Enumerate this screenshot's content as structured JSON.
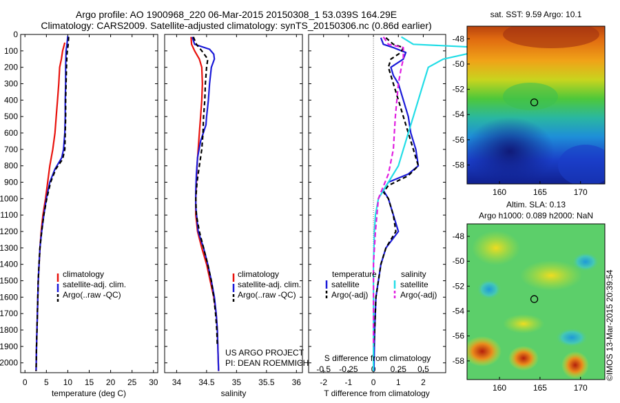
{
  "header": {
    "title_line1": "Argo profile: AO 1900968_220 06-Mar-2015 20150308_1 53.039S 164.29E",
    "title_line2": "Climatology: CARS2009. Satellite-adjusted climatology: synTS_20150306.nc (0.86d earlier)"
  },
  "colors": {
    "climatology": "#e8110c",
    "satellite": "#1a1ad8",
    "argo": "#000000",
    "satellite_salinity": "#22dde6",
    "argo_adj_salinity": "#e01ee0"
  },
  "credits": {
    "line1": "US ARGO PROJECT",
    "line2": "PI: DEAN ROEMMICH",
    "timestamp": "©IMOS 13-Mar-2015 20:39:54"
  },
  "maps": {
    "sst": {
      "title": "sat. SST: 9.59 Argo: 10.1"
    },
    "sla": {
      "title_line1": "Altim. SLA: 0.13",
      "title_line2": "Argo h1000: 0.089 h2000: NaN"
    }
  },
  "chart_data": [
    {
      "type": "line",
      "name": "temperature_panel",
      "xlabel": "temperature (deg C)",
      "ylabel": "",
      "xlim": [
        -1,
        31
      ],
      "ylim": [
        2060,
        0
      ],
      "xticks": [
        0,
        5,
        10,
        15,
        20,
        25,
        30
      ],
      "yticks": [
        0,
        100,
        200,
        300,
        400,
        500,
        600,
        700,
        800,
        900,
        1000,
        1100,
        1200,
        1300,
        1400,
        1500,
        1600,
        1700,
        1800,
        1900,
        2000
      ],
      "legend": [
        "climatology",
        "satellite-adj. clim.",
        "Argo(..raw -QC)"
      ],
      "legend_loc": "lower-center",
      "series": [
        {
          "name": "climatology",
          "color": "climatology",
          "dash": "",
          "points": [
            [
              9.3,
              50
            ],
            [
              8.8,
              100
            ],
            [
              8.5,
              150
            ],
            [
              8.1,
              200
            ],
            [
              7.9,
              300
            ],
            [
              7.6,
              400
            ],
            [
              7.3,
              500
            ],
            [
              7.0,
              600
            ],
            [
              6.5,
              700
            ],
            [
              5.8,
              800
            ],
            [
              5.3,
              900
            ],
            [
              4.8,
              1000
            ],
            [
              4.2,
              1100
            ],
            [
              3.8,
              1200
            ],
            [
              3.5,
              1300
            ],
            [
              3.3,
              1400
            ],
            [
              3.1,
              1500
            ],
            [
              2.9,
              1700
            ],
            [
              2.7,
              1900
            ],
            [
              2.6,
              2050
            ]
          ]
        },
        {
          "name": "satellite-adj. clim.",
          "color": "satellite",
          "dash": "",
          "points": [
            [
              10.0,
              10
            ],
            [
              9.8,
              60
            ],
            [
              9.6,
              100
            ],
            [
              9.5,
              200
            ],
            [
              9.5,
              300
            ],
            [
              9.4,
              400
            ],
            [
              9.4,
              500
            ],
            [
              9.3,
              600
            ],
            [
              9.0,
              700
            ],
            [
              8.6,
              750
            ],
            [
              7.0,
              820
            ],
            [
              5.8,
              900
            ],
            [
              5.0,
              1000
            ],
            [
              4.4,
              1100
            ],
            [
              3.9,
              1200
            ],
            [
              3.5,
              1300
            ],
            [
              3.3,
              1400
            ],
            [
              3.1,
              1500
            ],
            [
              2.9,
              1700
            ],
            [
              2.7,
              1900
            ],
            [
              2.6,
              2050
            ]
          ]
        },
        {
          "name": "Argo(..raw -QC)",
          "color": "argo",
          "dash": "6,4",
          "points": [
            [
              10.2,
              15
            ],
            [
              10.1,
              60
            ],
            [
              9.8,
              120
            ],
            [
              9.7,
              200
            ],
            [
              9.6,
              300
            ],
            [
              9.5,
              400
            ],
            [
              9.5,
              500
            ],
            [
              9.4,
              600
            ],
            [
              9.3,
              700
            ],
            [
              8.8,
              760
            ],
            [
              7.2,
              820
            ],
            [
              6.0,
              900
            ],
            [
              5.1,
              1000
            ],
            [
              4.4,
              1100
            ],
            [
              3.9,
              1200
            ],
            [
              3.5,
              1300
            ],
            [
              3.3,
              1400
            ],
            [
              3.1,
              1500
            ],
            [
              2.9,
              1700
            ],
            [
              2.7,
              1900
            ],
            [
              2.6,
              2050
            ]
          ]
        }
      ]
    },
    {
      "type": "line",
      "name": "salinity_panel",
      "xlabel": "salinity",
      "ylabel": "",
      "xlim": [
        33.8,
        36.1
      ],
      "ylim": [
        2060,
        0
      ],
      "xticks": [
        34,
        34.5,
        35,
        35.5,
        36
      ],
      "xticklabels": [
        "34",
        "34.5",
        "35",
        "35.5",
        "36"
      ],
      "legend": [
        "climatology",
        "satellite-adj. clim.",
        "Argo(..raw -QC)"
      ],
      "legend_loc": "lower-right",
      "series": [
        {
          "name": "climatology",
          "color": "climatology",
          "dash": "",
          "points": [
            [
              34.24,
              15
            ],
            [
              34.25,
              60
            ],
            [
              34.3,
              100
            ],
            [
              34.38,
              150
            ],
            [
              34.42,
              200
            ],
            [
              34.43,
              300
            ],
            [
              34.42,
              400
            ],
            [
              34.4,
              500
            ],
            [
              34.38,
              600
            ],
            [
              34.36,
              700
            ],
            [
              34.34,
              800
            ],
            [
              34.33,
              900
            ],
            [
              34.32,
              1000
            ],
            [
              34.32,
              1100
            ],
            [
              34.35,
              1200
            ],
            [
              34.42,
              1300
            ],
            [
              34.5,
              1400
            ],
            [
              34.56,
              1500
            ],
            [
              34.62,
              1600
            ],
            [
              34.66,
              1700
            ],
            [
              34.68,
              1800
            ],
            [
              34.7,
              2050
            ]
          ]
        },
        {
          "name": "satellite-adj. clim.",
          "color": "satellite",
          "dash": "",
          "points": [
            [
              34.26,
              15
            ],
            [
              34.3,
              60
            ],
            [
              34.55,
              90
            ],
            [
              34.62,
              120
            ],
            [
              34.63,
              150
            ],
            [
              34.58,
              200
            ],
            [
              34.55,
              300
            ],
            [
              34.53,
              400
            ],
            [
              34.5,
              500
            ],
            [
              34.49,
              550
            ],
            [
              34.4,
              650
            ],
            [
              34.35,
              750
            ],
            [
              34.33,
              850
            ],
            [
              34.32,
              950
            ],
            [
              34.32,
              1050
            ],
            [
              34.36,
              1200
            ],
            [
              34.45,
              1300
            ],
            [
              34.52,
              1400
            ],
            [
              34.58,
              1500
            ],
            [
              34.63,
              1600
            ],
            [
              34.66,
              1700
            ],
            [
              34.68,
              1800
            ],
            [
              34.7,
              2050
            ]
          ]
        },
        {
          "name": "Argo(..raw -QC)",
          "color": "argo",
          "dash": "6,4",
          "points": [
            [
              34.28,
              15
            ],
            [
              34.33,
              60
            ],
            [
              34.42,
              100
            ],
            [
              34.52,
              150
            ],
            [
              34.5,
              200
            ],
            [
              34.48,
              300
            ],
            [
              34.47,
              400
            ],
            [
              34.45,
              500
            ],
            [
              34.44,
              600
            ],
            [
              34.42,
              700
            ],
            [
              34.38,
              800
            ],
            [
              34.34,
              900
            ],
            [
              34.32,
              1000
            ],
            [
              34.33,
              1100
            ],
            [
              34.38,
              1200
            ],
            [
              34.45,
              1300
            ],
            [
              34.52,
              1400
            ],
            [
              34.58,
              1500
            ],
            [
              34.62,
              1600
            ],
            [
              34.65,
              1700
            ],
            [
              34.67,
              1800
            ],
            [
              34.68,
              1900
            ]
          ]
        }
      ]
    },
    {
      "type": "line",
      "name": "difference_panel",
      "xlabel": "T difference from climatology",
      "xlabel_top": "S difference from climatology",
      "ylabel": "",
      "xlim": [
        -2.6,
        2.9
      ],
      "ylim": [
        2060,
        0
      ],
      "xticks": [
        -2,
        -1,
        0,
        1,
        2
      ],
      "xticklabels": [
        "-2",
        "-1",
        "0",
        "1",
        "2"
      ],
      "s_ticks": [
        -0.5,
        -0.25,
        0,
        0.25,
        0.5
      ],
      "s_ticklabels": [
        "-0.5",
        "-0.25",
        "0",
        "0.25",
        "0.5"
      ],
      "s_scale": 4,
      "legend_groups": [
        {
          "title": "temperature",
          "items": [
            "satellite",
            "Argo(-adj)"
          ]
        },
        {
          "title": "salinity",
          "items": [
            "satellite",
            "Argo(-adj)"
          ]
        }
      ],
      "series": [
        {
          "name": "temperature satellite",
          "color": "satellite",
          "dash": "",
          "points": [
            [
              0.3,
              20
            ],
            [
              0.4,
              60
            ],
            [
              0.8,
              80
            ],
            [
              1.3,
              110
            ],
            [
              1.2,
              150
            ],
            [
              0.9,
              180
            ],
            [
              0.7,
              200
            ],
            [
              0.8,
              250
            ],
            [
              1.0,
              300
            ],
            [
              1.2,
              400
            ],
            [
              1.4,
              500
            ],
            [
              1.5,
              600
            ],
            [
              1.7,
              700
            ],
            [
              1.8,
              800
            ],
            [
              1.4,
              850
            ],
            [
              0.6,
              900
            ],
            [
              0.4,
              950
            ],
            [
              0.6,
              1000
            ],
            [
              0.8,
              1100
            ],
            [
              1.0,
              1200
            ],
            [
              0.5,
              1300
            ],
            [
              0.3,
              1400
            ],
            [
              0.2,
              1500
            ],
            [
              0.1,
              1600
            ],
            [
              0.05,
              1800
            ],
            [
              0.02,
              2050
            ]
          ]
        },
        {
          "name": "temperature Argo(-adj)",
          "color": "argo",
          "dash": "6,4",
          "points": [
            [
              0.5,
              20
            ],
            [
              0.8,
              60
            ],
            [
              1.2,
              80
            ],
            [
              1.1,
              110
            ],
            [
              0.7,
              150
            ],
            [
              0.6,
              200
            ],
            [
              0.8,
              300
            ],
            [
              1.0,
              400
            ],
            [
              1.2,
              500
            ],
            [
              1.4,
              600
            ],
            [
              1.6,
              700
            ],
            [
              1.8,
              800
            ],
            [
              1.4,
              860
            ],
            [
              0.6,
              920
            ],
            [
              0.4,
              960
            ],
            [
              0.6,
              1000
            ],
            [
              0.8,
              1100
            ],
            [
              0.9,
              1200
            ],
            [
              0.5,
              1300
            ],
            [
              0.3,
              1400
            ],
            [
              0.2,
              1500
            ],
            [
              0.1,
              1600
            ],
            [
              0.05,
              1800
            ],
            [
              0.02,
              1900
            ]
          ]
        },
        {
          "name": "salinity satellite",
          "color": "satellite_salinity",
          "dash": "",
          "points": [
            [
              0.28,
              15
            ],
            [
              0.4,
              60
            ],
            [
              1.1,
              80
            ],
            [
              1.0,
              110
            ],
            [
              0.7,
              150
            ],
            [
              0.55,
              200
            ],
            [
              0.5,
              300
            ],
            [
              0.45,
              400
            ],
            [
              0.4,
              500
            ],
            [
              0.35,
              600
            ],
            [
              0.3,
              700
            ],
            [
              0.25,
              800
            ],
            [
              0.15,
              900
            ],
            [
              0.05,
              1000
            ],
            [
              0.02,
              1100
            ],
            [
              0.01,
              1200
            ],
            [
              0.0,
              1400
            ],
            [
              0.0,
              2050
            ]
          ]
        },
        {
          "name": "salinity Argo(-adj)",
          "color": "argo_adj_salinity",
          "dash": "7,4",
          "points": [
            [
              0.1,
              15
            ],
            [
              0.15,
              60
            ],
            [
              0.3,
              80
            ],
            [
              0.3,
              150
            ],
            [
              0.28,
              200
            ],
            [
              0.25,
              300
            ],
            [
              0.22,
              500
            ],
            [
              0.2,
              700
            ],
            [
              0.15,
              850
            ],
            [
              0.05,
              1000
            ],
            [
              0.02,
              1200
            ],
            [
              0.0,
              1400
            ],
            [
              0.0,
              1900
            ]
          ]
        }
      ]
    },
    {
      "type": "heatmap",
      "name": "sst_map",
      "xlim": [
        156,
        173
      ],
      "ylim": [
        -59.5,
        -47
      ],
      "xticks": [
        160,
        165,
        170
      ],
      "yticks": [
        -48,
        -50,
        -52,
        -54,
        -56,
        -58
      ],
      "marker": {
        "lon": 164.29,
        "lat": -53.039
      }
    },
    {
      "type": "heatmap",
      "name": "sla_map",
      "xlim": [
        156,
        173
      ],
      "ylim": [
        -59.5,
        -47
      ],
      "xticks": [
        160,
        165,
        170
      ],
      "yticks": [
        -48,
        -50,
        -52,
        -54,
        -56,
        -58
      ],
      "marker": {
        "lon": 164.29,
        "lat": -53.039
      }
    }
  ]
}
